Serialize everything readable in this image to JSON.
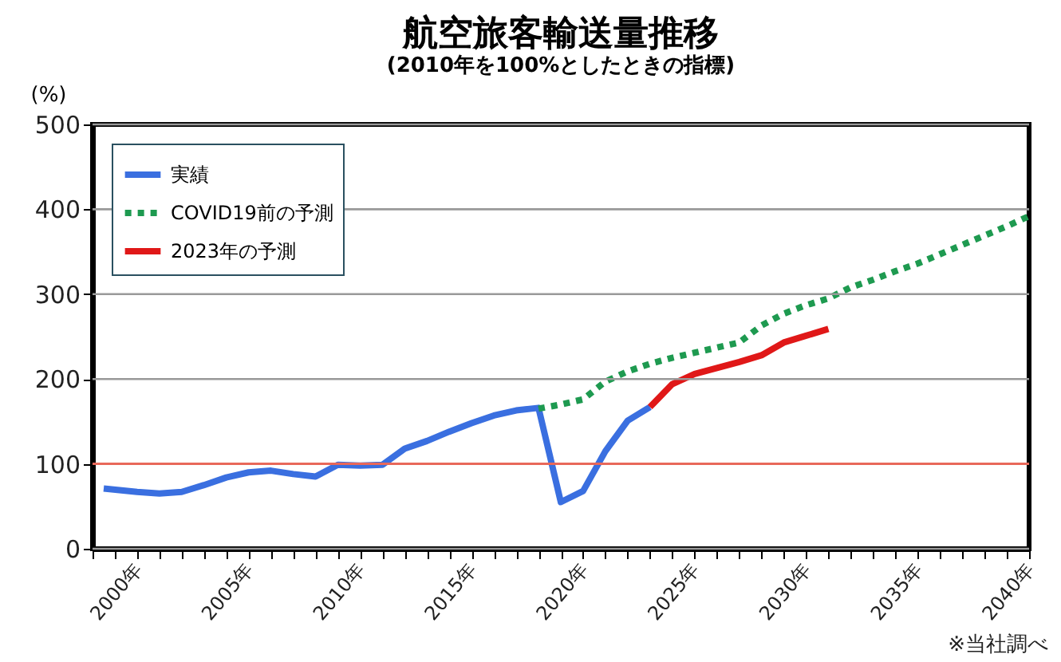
{
  "chart_data": {
    "type": "line",
    "title": "航空旅客輸送量推移",
    "subtitle": "(2010年を100%としたときの指標)",
    "ylabel": "(%)",
    "annotations": [
      "※当社調べ"
    ],
    "xlim": [
      1998,
      2040
    ],
    "ylim": [
      0,
      500
    ],
    "xticks": [
      {
        "value": 1998,
        "label": null
      },
      {
        "value": 1999,
        "label": null
      },
      {
        "value": 2000,
        "label": "2000年"
      },
      {
        "value": 2001,
        "label": null
      },
      {
        "value": 2002,
        "label": null
      },
      {
        "value": 2003,
        "label": null
      },
      {
        "value": 2004,
        "label": null
      },
      {
        "value": 2005,
        "label": "2005年"
      },
      {
        "value": 2006,
        "label": null
      },
      {
        "value": 2007,
        "label": null
      },
      {
        "value": 2008,
        "label": null
      },
      {
        "value": 2009,
        "label": null
      },
      {
        "value": 2010,
        "label": "2010年"
      },
      {
        "value": 2011,
        "label": null
      },
      {
        "value": 2012,
        "label": null
      },
      {
        "value": 2013,
        "label": null
      },
      {
        "value": 2014,
        "label": null
      },
      {
        "value": 2015,
        "label": "2015年"
      },
      {
        "value": 2016,
        "label": null
      },
      {
        "value": 2017,
        "label": null
      },
      {
        "value": 2018,
        "label": null
      },
      {
        "value": 2019,
        "label": null
      },
      {
        "value": 2020,
        "label": "2020年"
      },
      {
        "value": 2021,
        "label": null
      },
      {
        "value": 2022,
        "label": null
      },
      {
        "value": 2023,
        "label": null
      },
      {
        "value": 2024,
        "label": null
      },
      {
        "value": 2025,
        "label": "2025年"
      },
      {
        "value": 2026,
        "label": null
      },
      {
        "value": 2027,
        "label": null
      },
      {
        "value": 2028,
        "label": null
      },
      {
        "value": 2029,
        "label": null
      },
      {
        "value": 2030,
        "label": "2030年"
      },
      {
        "value": 2031,
        "label": null
      },
      {
        "value": 2032,
        "label": null
      },
      {
        "value": 2033,
        "label": null
      },
      {
        "value": 2034,
        "label": null
      },
      {
        "value": 2035,
        "label": "2035年"
      },
      {
        "value": 2036,
        "label": null
      },
      {
        "value": 2037,
        "label": null
      },
      {
        "value": 2038,
        "label": null
      },
      {
        "value": 2039,
        "label": null
      },
      {
        "value": 2040,
        "label": "2040年"
      }
    ],
    "yticks": [
      0,
      100,
      200,
      300,
      400,
      500
    ],
    "grid": "y",
    "legend": "top left",
    "marker": "none",
    "ref_lines": [
      {
        "axis": "y",
        "value": 100,
        "color": "#e8685a"
      }
    ],
    "series": [
      {
        "name": "実績",
        "color": "#3a6fe0",
        "line_style": "solid",
        "x": [
          1998.5,
          2000,
          2001,
          2002,
          2003,
          2004,
          2005,
          2006,
          2007,
          2008,
          2009,
          2010,
          2011,
          2012,
          2013,
          2014,
          2015,
          2016,
          2017,
          2018,
          2019,
          2020,
          2021,
          2022,
          2023
        ],
        "values": [
          71,
          67,
          65,
          67,
          75,
          84,
          90,
          92,
          88,
          85,
          99,
          98,
          99,
          118,
          127,
          138,
          148,
          157,
          163,
          166,
          55,
          68,
          115,
          151,
          167
        ]
      },
      {
        "name": "COVID19前の予測",
        "color": "#1e9a50",
        "line_style": "dotted",
        "x": [
          2018,
          2019,
          2020,
          2021,
          2022,
          2023,
          2024,
          2025,
          2026,
          2027,
          2028,
          2029,
          2030,
          2031,
          2032,
          2033,
          2034,
          2035,
          2036,
          2037,
          2038,
          2039,
          2040
        ],
        "values": [
          165,
          170,
          176,
          197,
          209,
          218,
          225,
          231,
          237,
          243,
          263,
          277,
          287,
          295,
          308,
          317,
          327,
          336,
          347,
          358,
          369,
          380,
          392
        ]
      },
      {
        "name": "2023年の予測",
        "color": "#e01818",
        "line_style": "solid",
        "x": [
          2023,
          2024,
          2025,
          2026,
          2027,
          2028,
          2029,
          2030,
          2031
        ],
        "values": [
          167,
          194,
          206,
          213,
          220,
          228,
          243,
          251,
          259
        ]
      }
    ]
  }
}
